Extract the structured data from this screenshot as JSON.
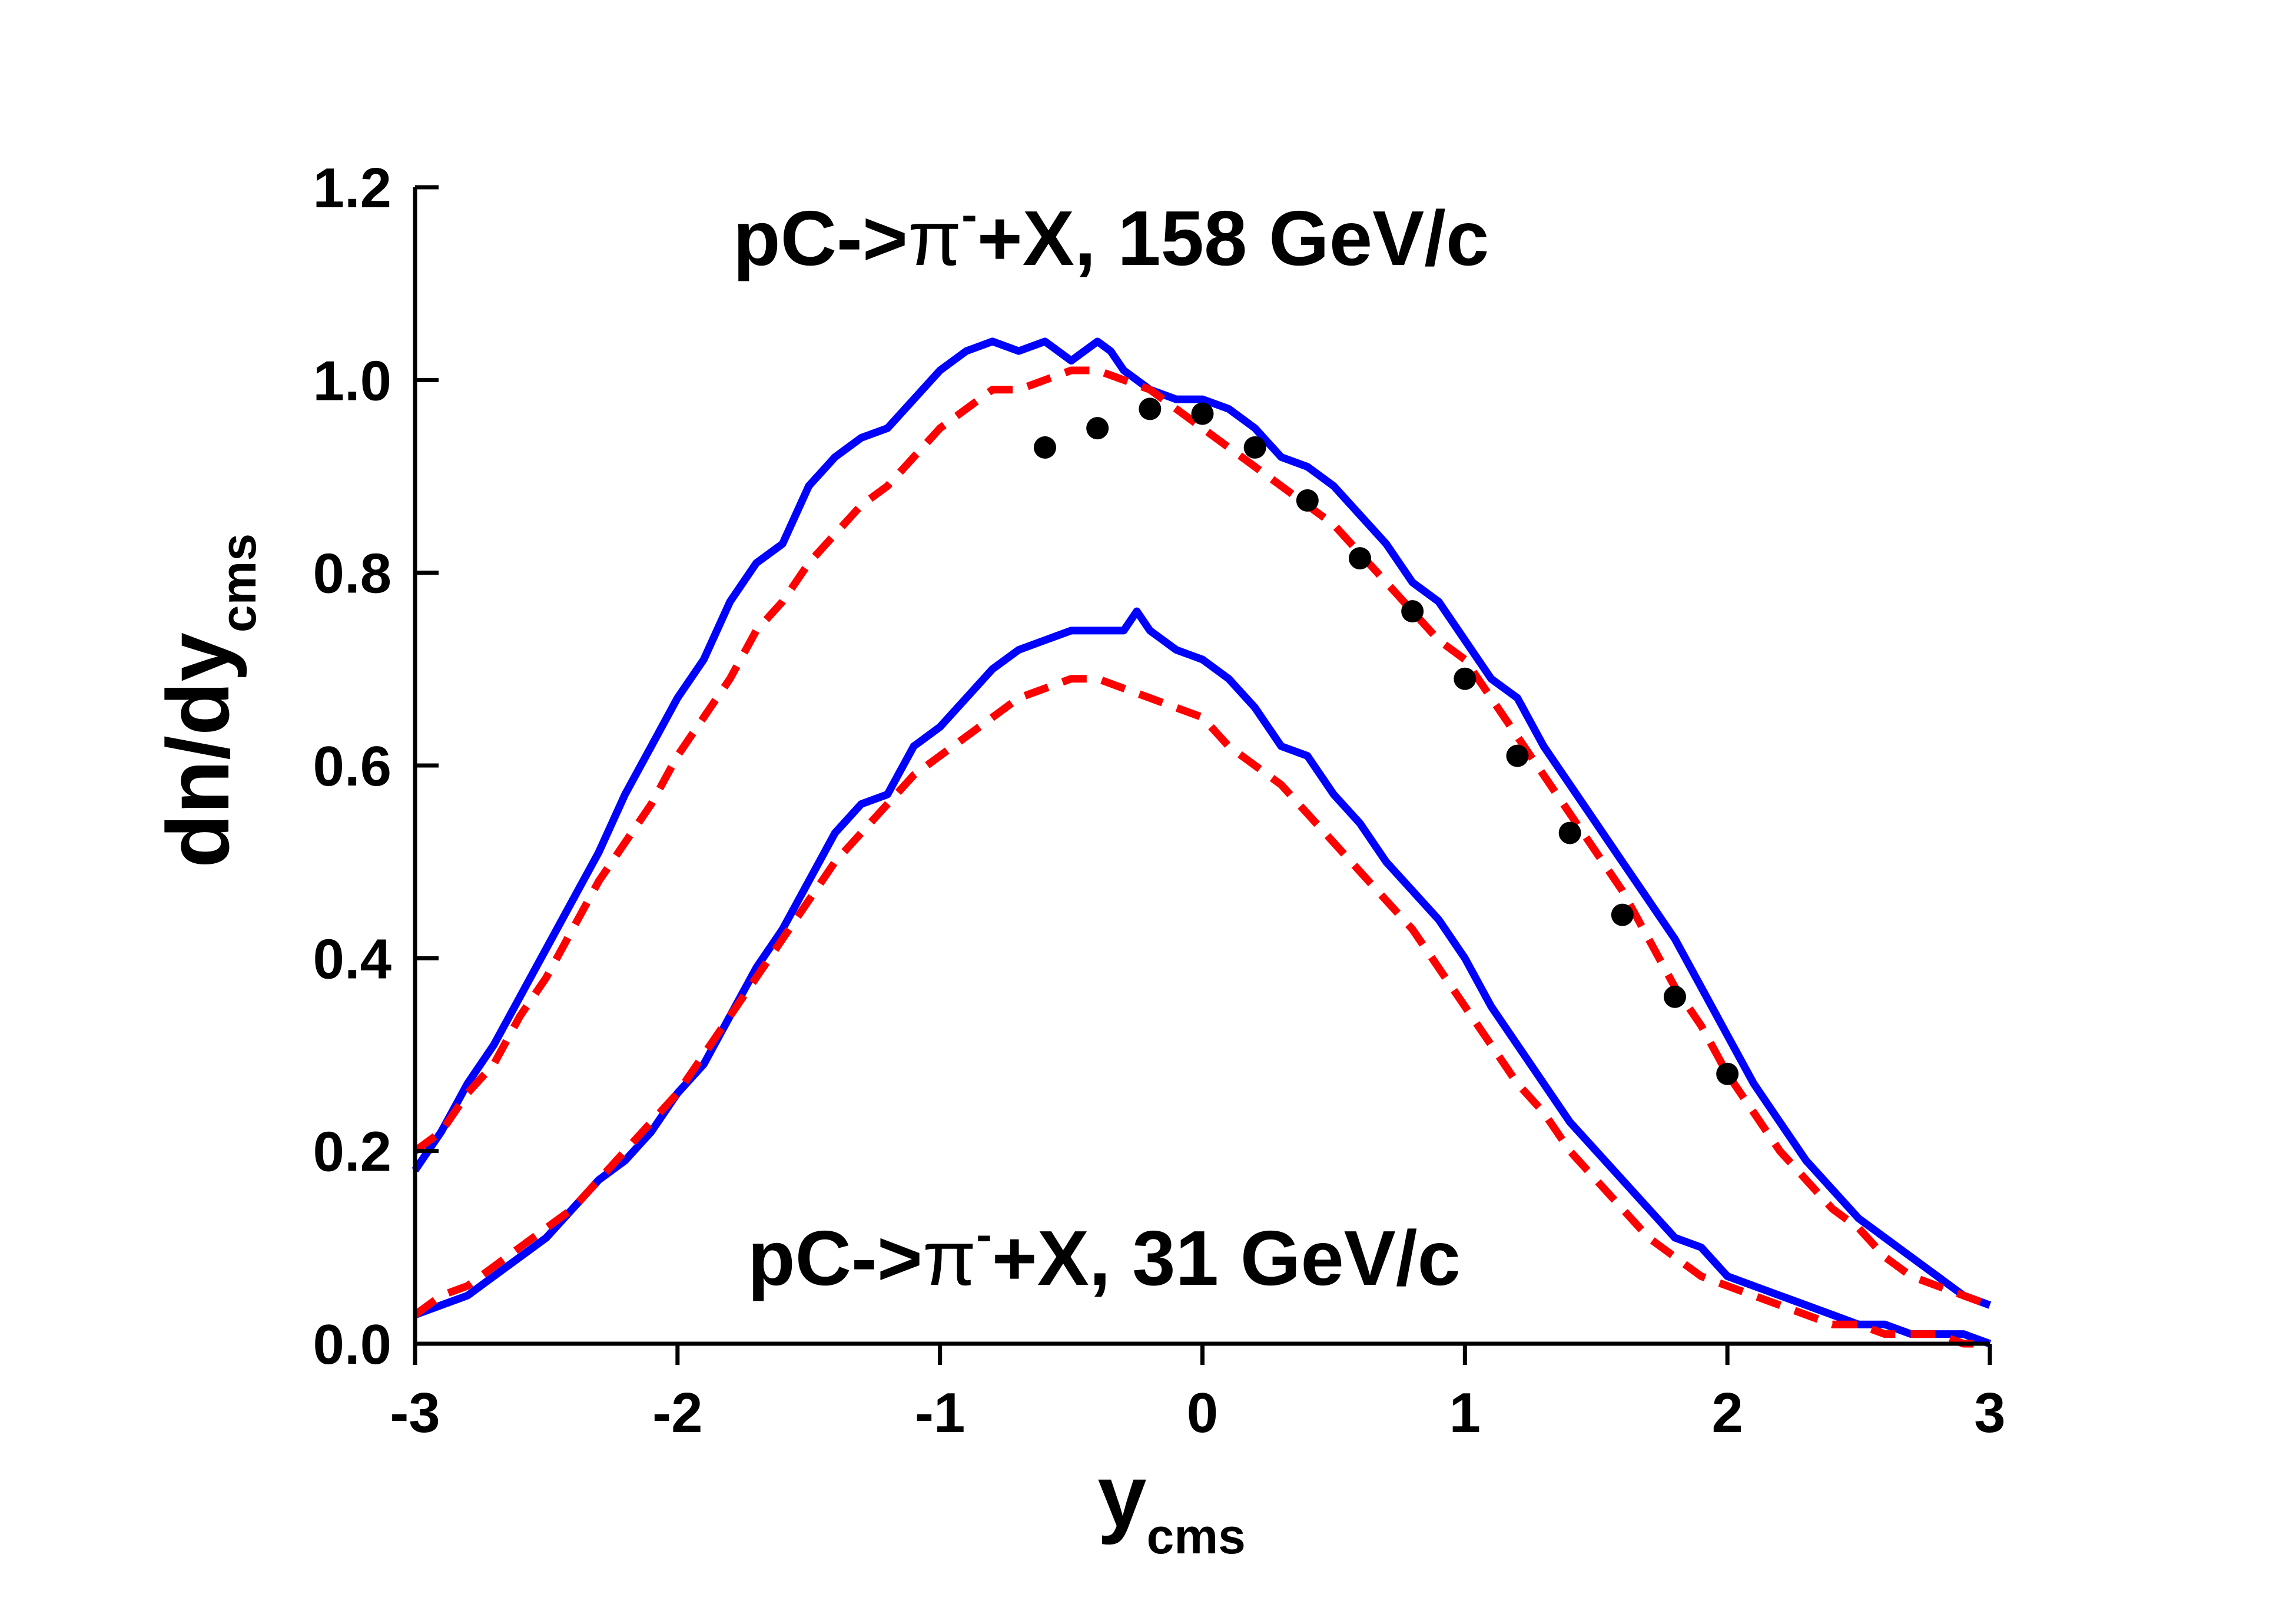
{
  "chart_data": {
    "type": "line",
    "title": "",
    "xlabel": "y",
    "xlabel_sub": "cms",
    "ylabel": "dn/dy",
    "ylabel_sub": "cms",
    "xlim": [
      -3,
      3
    ],
    "ylim": [
      0,
      1.2
    ],
    "xticks": [
      -3,
      -2,
      -1,
      0,
      1,
      2,
      3
    ],
    "xtick_labels": [
      "-3",
      "-2",
      "-1",
      "0",
      "1",
      "2",
      "3"
    ],
    "yticks": [
      0,
      0.2,
      0.4,
      0.6,
      0.8,
      1.0,
      1.2
    ],
    "ytick_labels": [
      "0.0",
      "0.2",
      "0.4",
      "0.6",
      "0.8",
      "1.0",
      "1.2"
    ],
    "annotations": [
      {
        "id": "upper",
        "prefix": "pC->",
        "symbol": "π",
        "sup": "-",
        "suffix": "+X, 158 GeV/c"
      },
      {
        "id": "lower",
        "prefix": "pC->",
        "symbol": "π",
        "sup": "-",
        "suffix": "+X, 31 GeV/c"
      }
    ],
    "colors": {
      "solid": "#0000ff",
      "dashed": "#ff0000",
      "points": "#000000",
      "axis": "#000000"
    },
    "series": [
      {
        "name": "158 GeV/c solid",
        "style": "solid",
        "color": "#0000ff",
        "x": [
          -3.0,
          -2.9,
          -2.8,
          -2.7,
          -2.6,
          -2.5,
          -2.4,
          -2.3,
          -2.2,
          -2.1,
          -2.0,
          -1.9,
          -1.8,
          -1.7,
          -1.6,
          -1.5,
          -1.4,
          -1.3,
          -1.2,
          -1.1,
          -1.0,
          -0.9,
          -0.8,
          -0.7,
          -0.6,
          -0.5,
          -0.4,
          -0.35,
          -0.3,
          -0.2,
          -0.1,
          0.0,
          0.1,
          0.2,
          0.3,
          0.4,
          0.5,
          0.6,
          0.7,
          0.8,
          0.9,
          1.0,
          1.1,
          1.2,
          1.3,
          1.4,
          1.5,
          1.6,
          1.7,
          1.8,
          1.9,
          2.0,
          2.1,
          2.2,
          2.3,
          2.4,
          2.5,
          2.6,
          2.7,
          2.8,
          2.9,
          3.0
        ],
        "y": [
          0.18,
          0.22,
          0.27,
          0.31,
          0.36,
          0.41,
          0.46,
          0.51,
          0.57,
          0.62,
          0.67,
          0.71,
          0.77,
          0.81,
          0.83,
          0.89,
          0.92,
          0.94,
          0.95,
          0.98,
          1.01,
          1.03,
          1.04,
          1.03,
          1.04,
          1.02,
          1.04,
          1.03,
          1.01,
          0.99,
          0.98,
          0.98,
          0.97,
          0.95,
          0.92,
          0.91,
          0.89,
          0.86,
          0.83,
          0.79,
          0.77,
          0.73,
          0.69,
          0.67,
          0.62,
          0.58,
          0.54,
          0.5,
          0.46,
          0.42,
          0.37,
          0.32,
          0.27,
          0.23,
          0.19,
          0.16,
          0.13,
          0.11,
          0.09,
          0.07,
          0.05,
          0.04
        ]
      },
      {
        "name": "158 GeV/c dashed",
        "style": "dashed",
        "color": "#ff0000",
        "x": [
          -3.0,
          -2.9,
          -2.8,
          -2.7,
          -2.6,
          -2.5,
          -2.4,
          -2.3,
          -2.2,
          -2.1,
          -2.0,
          -1.9,
          -1.8,
          -1.7,
          -1.6,
          -1.5,
          -1.4,
          -1.3,
          -1.2,
          -1.1,
          -1.0,
          -0.9,
          -0.8,
          -0.7,
          -0.6,
          -0.5,
          -0.4,
          -0.3,
          -0.2,
          -0.1,
          0.0,
          0.1,
          0.2,
          0.3,
          0.4,
          0.5,
          0.6,
          0.7,
          0.8,
          0.9,
          1.0,
          1.1,
          1.2,
          1.3,
          1.4,
          1.5,
          1.6,
          1.7,
          1.8,
          1.9,
          2.0,
          2.1,
          2.2,
          2.3,
          2.4,
          2.5,
          2.6,
          2.7,
          2.8,
          2.9,
          3.0
        ],
        "y": [
          0.2,
          0.22,
          0.26,
          0.29,
          0.34,
          0.38,
          0.43,
          0.48,
          0.52,
          0.56,
          0.61,
          0.65,
          0.69,
          0.74,
          0.77,
          0.81,
          0.84,
          0.87,
          0.89,
          0.92,
          0.95,
          0.97,
          0.99,
          0.99,
          1.0,
          1.01,
          1.01,
          1.0,
          0.99,
          0.97,
          0.95,
          0.93,
          0.91,
          0.89,
          0.87,
          0.85,
          0.82,
          0.79,
          0.76,
          0.73,
          0.71,
          0.67,
          0.63,
          0.59,
          0.55,
          0.51,
          0.47,
          0.42,
          0.37,
          0.33,
          0.28,
          0.24,
          0.2,
          0.17,
          0.14,
          0.12,
          0.09,
          0.07,
          0.06,
          0.05,
          0.04
        ]
      },
      {
        "name": "31 GeV/c solid",
        "style": "solid",
        "color": "#0000ff",
        "x": [
          -3.0,
          -2.9,
          -2.8,
          -2.7,
          -2.6,
          -2.5,
          -2.4,
          -2.3,
          -2.2,
          -2.1,
          -2.0,
          -1.9,
          -1.8,
          -1.7,
          -1.6,
          -1.5,
          -1.4,
          -1.3,
          -1.2,
          -1.1,
          -1.0,
          -0.9,
          -0.8,
          -0.7,
          -0.6,
          -0.5,
          -0.4,
          -0.3,
          -0.25,
          -0.2,
          -0.1,
          0.0,
          0.1,
          0.2,
          0.3,
          0.4,
          0.5,
          0.6,
          0.7,
          0.8,
          0.9,
          1.0,
          1.1,
          1.2,
          1.3,
          1.4,
          1.5,
          1.6,
          1.7,
          1.8,
          1.9,
          2.0,
          2.1,
          2.2,
          2.3,
          2.4,
          2.5,
          2.6,
          2.7,
          2.8,
          2.9,
          3.0
        ],
        "y": [
          0.03,
          0.04,
          0.05,
          0.07,
          0.09,
          0.11,
          0.14,
          0.17,
          0.19,
          0.22,
          0.26,
          0.29,
          0.34,
          0.39,
          0.43,
          0.48,
          0.53,
          0.56,
          0.57,
          0.62,
          0.64,
          0.67,
          0.7,
          0.72,
          0.73,
          0.74,
          0.74,
          0.74,
          0.76,
          0.74,
          0.72,
          0.71,
          0.69,
          0.66,
          0.62,
          0.61,
          0.57,
          0.54,
          0.5,
          0.47,
          0.44,
          0.4,
          0.35,
          0.31,
          0.27,
          0.23,
          0.2,
          0.17,
          0.14,
          0.11,
          0.1,
          0.07,
          0.06,
          0.05,
          0.04,
          0.03,
          0.02,
          0.02,
          0.01,
          0.01,
          0.01,
          0.0
        ]
      },
      {
        "name": "31 GeV/c dashed",
        "style": "dashed",
        "color": "#ff0000",
        "x": [
          -3.0,
          -2.9,
          -2.8,
          -2.7,
          -2.6,
          -2.5,
          -2.4,
          -2.3,
          -2.2,
          -2.1,
          -2.0,
          -1.9,
          -1.8,
          -1.7,
          -1.6,
          -1.5,
          -1.4,
          -1.3,
          -1.2,
          -1.1,
          -1.0,
          -0.9,
          -0.8,
          -0.7,
          -0.6,
          -0.5,
          -0.4,
          -0.3,
          -0.2,
          -0.1,
          0.0,
          0.1,
          0.2,
          0.3,
          0.4,
          0.5,
          0.6,
          0.7,
          0.8,
          0.9,
          1.0,
          1.1,
          1.2,
          1.3,
          1.4,
          1.5,
          1.6,
          1.7,
          1.8,
          1.9,
          2.0,
          2.1,
          2.2,
          2.3,
          2.4,
          2.5,
          2.6,
          2.7,
          2.8,
          2.9,
          3.0
        ],
        "y": [
          0.03,
          0.05,
          0.06,
          0.08,
          0.1,
          0.12,
          0.14,
          0.17,
          0.2,
          0.23,
          0.26,
          0.3,
          0.34,
          0.38,
          0.42,
          0.46,
          0.5,
          0.53,
          0.56,
          0.59,
          0.61,
          0.63,
          0.65,
          0.67,
          0.68,
          0.69,
          0.69,
          0.68,
          0.67,
          0.66,
          0.65,
          0.62,
          0.6,
          0.58,
          0.55,
          0.52,
          0.49,
          0.46,
          0.43,
          0.39,
          0.35,
          0.31,
          0.27,
          0.24,
          0.2,
          0.17,
          0.14,
          0.11,
          0.09,
          0.07,
          0.06,
          0.05,
          0.04,
          0.03,
          0.02,
          0.02,
          0.01,
          0.01,
          0.01,
          0.0,
          0.0
        ]
      },
      {
        "name": "experimental points (158 GeV/c)",
        "style": "points",
        "color": "#000000",
        "x": [
          -0.6,
          -0.4,
          -0.2,
          0.0,
          0.2,
          0.4,
          0.6,
          0.8,
          1.0,
          1.2,
          1.4,
          1.6,
          1.8,
          2.0
        ],
        "y": [
          0.93,
          0.95,
          0.97,
          0.965,
          0.93,
          0.875,
          0.815,
          0.76,
          0.69,
          0.61,
          0.53,
          0.445,
          0.36,
          0.28
        ]
      }
    ]
  }
}
